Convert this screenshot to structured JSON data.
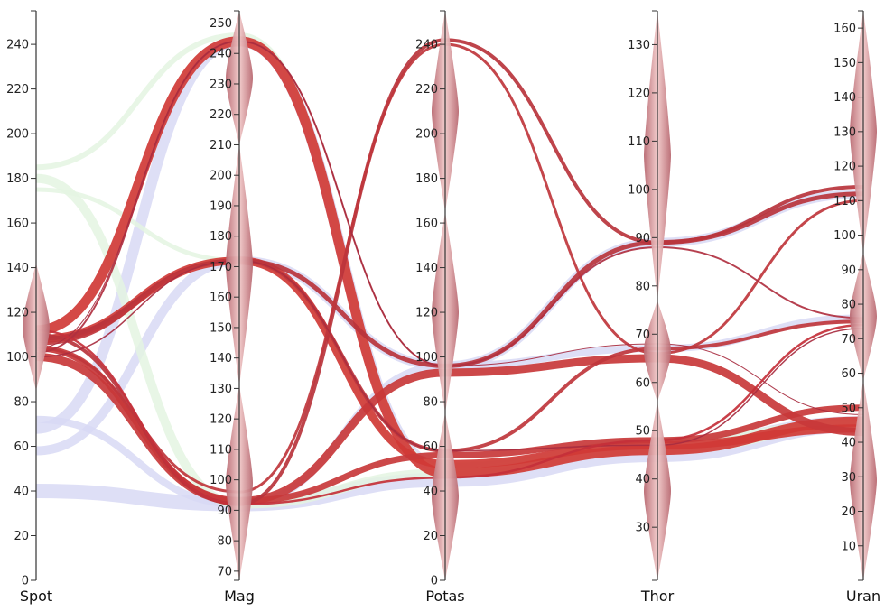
{
  "chart_data": {
    "type": "parallel-coordinates",
    "axes": [
      {
        "name": "Spot",
        "domain": [
          0,
          255
        ],
        "ticks": [
          0,
          20,
          40,
          60,
          80,
          100,
          120,
          140,
          160,
          180,
          200,
          220,
          240
        ]
      },
      {
        "name": "Mag",
        "domain": [
          67,
          254
        ],
        "ticks": [
          70,
          80,
          90,
          100,
          110,
          120,
          130,
          140,
          150,
          160,
          170,
          180,
          190,
          200,
          210,
          220,
          230,
          240,
          250
        ]
      },
      {
        "name": "Potas",
        "domain": [
          0,
          255
        ],
        "ticks": [
          0,
          20,
          40,
          60,
          80,
          100,
          120,
          140,
          160,
          180,
          200,
          220,
          240
        ]
      },
      {
        "name": "Thor",
        "domain": [
          19,
          137
        ],
        "ticks": [
          30,
          40,
          50,
          60,
          70,
          80,
          90,
          100,
          110,
          120,
          130
        ]
      },
      {
        "name": "Uran",
        "domain": [
          0,
          165
        ],
        "ticks": [
          10,
          20,
          30,
          40,
          50,
          60,
          70,
          80,
          90,
          100,
          110,
          120,
          130,
          140,
          150,
          160
        ]
      }
    ],
    "clusters": [
      {
        "axis": "Spot",
        "ranges": [
          [
            85,
            142
          ]
        ]
      },
      {
        "axis": "Mag",
        "ranges": [
          [
            67,
            131
          ],
          [
            131,
            210
          ],
          [
            210,
            254
          ]
        ]
      },
      {
        "axis": "Potas",
        "ranges": [
          [
            0,
            75
          ],
          [
            75,
            165
          ],
          [
            165,
            255
          ]
        ]
      },
      {
        "axis": "Thor",
        "ranges": [
          [
            19,
            56
          ],
          [
            56,
            77
          ],
          [
            77,
            137
          ]
        ]
      },
      {
        "axis": "Uran",
        "ranges": [
          [
            0,
            58
          ],
          [
            58,
            95
          ],
          [
            95,
            165
          ]
        ]
      }
    ],
    "series": [
      {
        "color": "#d03a36",
        "weight": 11,
        "values": [
          112,
          244,
          48,
          46,
          46
        ]
      },
      {
        "color": "#d03a36",
        "weight": 9,
        "values": [
          108,
          172,
          52,
          47,
          44
        ]
      },
      {
        "color": "#c8383a",
        "weight": 9,
        "values": [
          100,
          93,
          93,
          65,
          43
        ]
      },
      {
        "color": "#c8383a",
        "weight": 7,
        "values": [
          104,
          93,
          56,
          48,
          50
        ]
      },
      {
        "color": "#b8343c",
        "weight": 5,
        "values": [
          108,
          172,
          96,
          89,
          112
        ]
      },
      {
        "color": "#b8343c",
        "weight": 4,
        "values": [
          110,
          92,
          242,
          89,
          114
        ]
      },
      {
        "color": "#bf363c",
        "weight": 4,
        "values": [
          106,
          172,
          58,
          67,
          75
        ]
      },
      {
        "color": "#bf363c",
        "weight": 3,
        "values": [
          104,
          96,
          240,
          66,
          110
        ]
      },
      {
        "color": "#b03040",
        "weight": 2,
        "values": [
          102,
          244,
          96,
          88,
          76
        ]
      },
      {
        "color": "#a82d40",
        "weight": 1.5,
        "values": [
          100,
          172,
          58,
          47,
          73
        ]
      },
      {
        "color": "#a82d40",
        "weight": 1,
        "values": [
          104,
          244,
          96,
          68,
          48
        ]
      },
      {
        "color": "#c4303a",
        "weight": 2.5,
        "values": [
          112,
          92,
          46,
          48,
          74
        ]
      }
    ],
    "context_series": [
      {
        "color": "#d8d9f4",
        "weight": 16,
        "values": [
          40,
          92,
          45,
          45,
          45
        ]
      },
      {
        "color": "#d8d9f4",
        "weight": 12,
        "values": [
          68,
          244,
          50,
          47,
          46
        ]
      },
      {
        "color": "#d8d9f4",
        "weight": 10,
        "values": [
          58,
          172,
          96,
          89,
          112
        ]
      },
      {
        "color": "#d8d9f4",
        "weight": 8,
        "values": [
          72,
          92,
          96,
          67,
          76
        ]
      },
      {
        "color": "#e4f4e2",
        "weight": 10,
        "values": [
          180,
          92,
          48,
          46,
          45
        ]
      },
      {
        "color": "#e4f4e2",
        "weight": 6,
        "values": [
          185,
          246,
          50,
          48,
          46
        ]
      },
      {
        "color": "#e4f4e2",
        "weight": 5,
        "values": [
          175,
          172,
          52,
          47,
          44
        ]
      }
    ],
    "colors": {
      "band": "#d03a36",
      "context_low": "#d8d9f4",
      "context_high": "#e4f4e2",
      "cluster": "#c47a80"
    }
  }
}
